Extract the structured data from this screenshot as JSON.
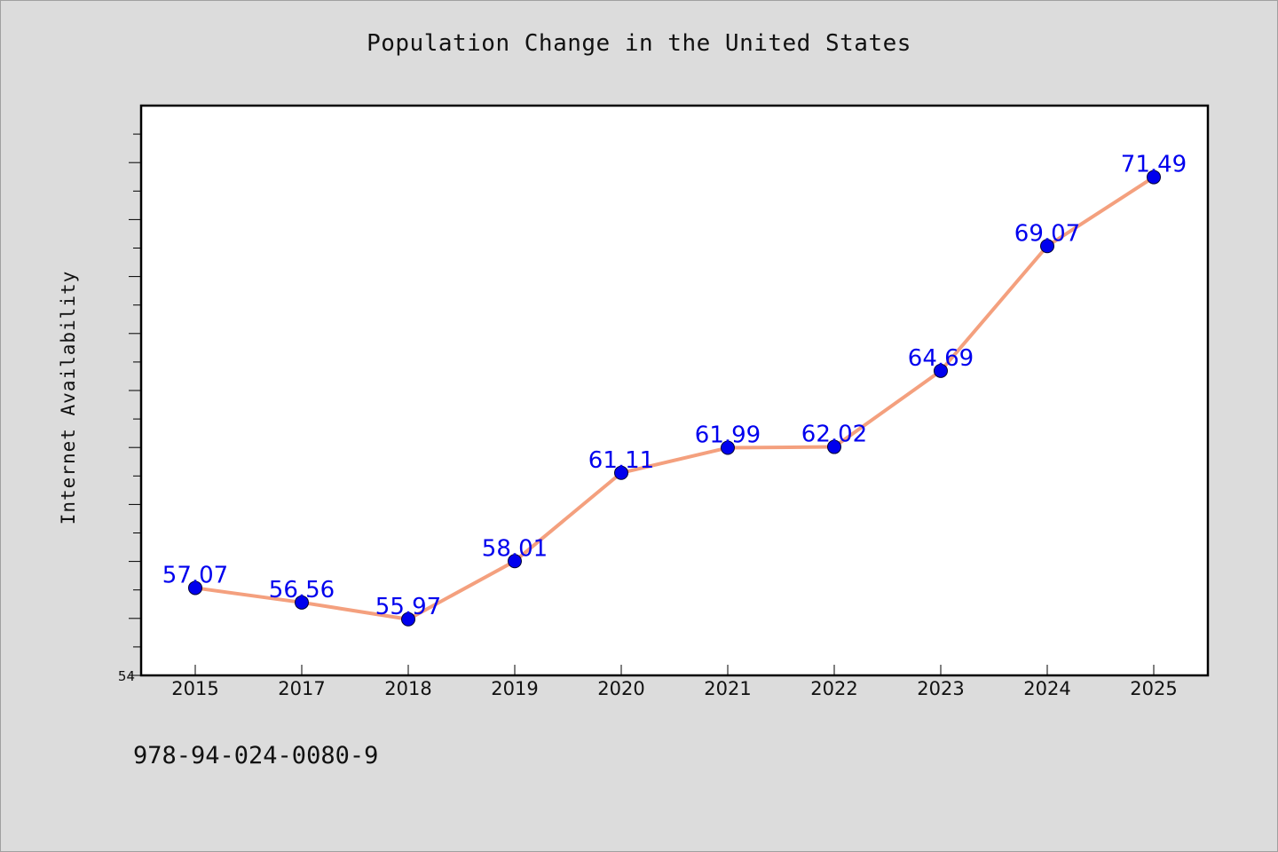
{
  "chart_data": {
    "type": "line",
    "title": "Population Change in the United States",
    "xlabel": "",
    "ylabel": "Internet Availability",
    "categories": [
      "2015",
      "2017",
      "2018",
      "2019",
      "2020",
      "2021",
      "2022",
      "2023",
      "2024",
      "2025"
    ],
    "series": [
      {
        "values": [
          57.07,
          56.56,
          55.97,
          58.01,
          61.11,
          61.99,
          62.02,
          64.69,
          69.07,
          71.49
        ],
        "labels": [
          "57.07",
          "56.56",
          "55.97",
          "58.01",
          "61.11",
          "61.99",
          "62.02",
          "64.69",
          "69.07",
          "71.49"
        ]
      }
    ],
    "ylim": [
      54,
      74
    ],
    "ytick_labels": [
      "54"
    ],
    "grid": false,
    "colors": {
      "line": "#f4a07e",
      "marker": "#0000ee",
      "label": "#0000ee",
      "background": "#dcdcdc",
      "plot_background": "#ffffff"
    }
  },
  "footer": {
    "text": "978-94-024-0080-9"
  }
}
